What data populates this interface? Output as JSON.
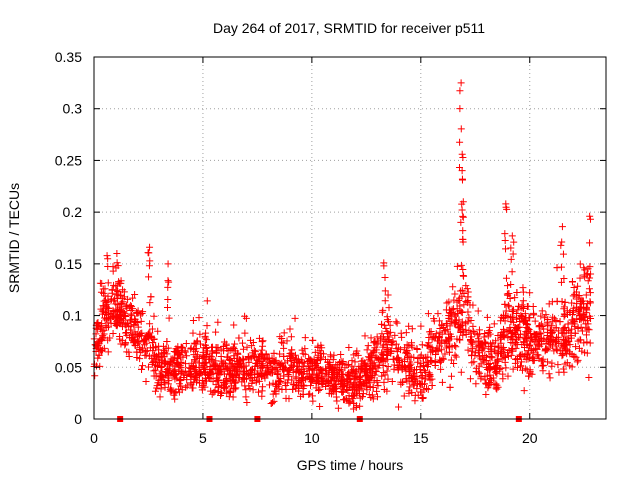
{
  "chart_data": {
    "type": "scatter",
    "title": "Day 264 of 2017, SRMTID for receiver p511",
    "xlabel": "GPS time / hours",
    "ylabel": "SRMTID / TECUs",
    "xlim": [
      0,
      23.5
    ],
    "ylim": [
      0,
      0.35
    ],
    "xticks": [
      0,
      5,
      10,
      15,
      20
    ],
    "xtick_labels": [
      "0",
      "5",
      "10",
      "15",
      "20"
    ],
    "yticks": [
      0,
      0.05,
      0.1,
      0.15,
      0.2,
      0.25,
      0.3,
      0.35
    ],
    "ytick_labels": [
      "0",
      "0.05",
      "0.1",
      "0.15",
      "0.2",
      "0.25",
      "0.3",
      "0.35"
    ],
    "grid": true,
    "marker": "plus",
    "color": "#ff0000",
    "series_profile": {
      "name": "SRMTID",
      "x": [
        0,
        0.5,
        1.0,
        1.5,
        2.0,
        2.5,
        3.0,
        3.5,
        4.0,
        4.5,
        5.0,
        5.5,
        6.0,
        6.5,
        7.0,
        7.5,
        8.0,
        8.5,
        9.0,
        9.5,
        10.0,
        10.5,
        11.0,
        11.5,
        12.0,
        12.5,
        13.0,
        13.5,
        14.0,
        14.5,
        15.0,
        15.5,
        16.0,
        16.5,
        17.0,
        17.5,
        18.0,
        18.5,
        19.0,
        19.5,
        20.0,
        20.5,
        21.0,
        21.5,
        22.0,
        22.5,
        22.8
      ],
      "y_center": [
        0.065,
        0.1,
        0.11,
        0.095,
        0.08,
        0.07,
        0.05,
        0.048,
        0.05,
        0.05,
        0.055,
        0.05,
        0.045,
        0.05,
        0.048,
        0.05,
        0.045,
        0.045,
        0.05,
        0.045,
        0.045,
        0.045,
        0.04,
        0.035,
        0.035,
        0.04,
        0.06,
        0.075,
        0.06,
        0.05,
        0.045,
        0.06,
        0.075,
        0.09,
        0.1,
        0.07,
        0.065,
        0.05,
        0.09,
        0.08,
        0.075,
        0.08,
        0.08,
        0.075,
        0.09,
        0.1,
        0.1
      ],
      "y_spread": [
        0.012,
        0.018,
        0.018,
        0.015,
        0.014,
        0.014,
        0.015,
        0.013,
        0.013,
        0.013,
        0.014,
        0.013,
        0.013,
        0.013,
        0.013,
        0.013,
        0.013,
        0.013,
        0.013,
        0.013,
        0.013,
        0.013,
        0.012,
        0.011,
        0.011,
        0.012,
        0.016,
        0.018,
        0.016,
        0.014,
        0.014,
        0.016,
        0.018,
        0.022,
        0.025,
        0.018,
        0.016,
        0.016,
        0.022,
        0.02,
        0.018,
        0.018,
        0.018,
        0.018,
        0.02,
        0.025,
        0.025
      ],
      "peaks": [
        {
          "x": 0.6,
          "y": 0.158
        },
        {
          "x": 1.05,
          "y": 0.16
        },
        {
          "x": 2.55,
          "y": 0.166
        },
        {
          "x": 3.4,
          "y": 0.15
        },
        {
          "x": 13.3,
          "y": 0.151
        },
        {
          "x": 16.85,
          "y": 0.325
        },
        {
          "x": 16.9,
          "y": 0.256
        },
        {
          "x": 16.95,
          "y": 0.21
        },
        {
          "x": 18.9,
          "y": 0.208
        },
        {
          "x": 19.2,
          "y": 0.177
        },
        {
          "x": 21.5,
          "y": 0.186
        },
        {
          "x": 22.75,
          "y": 0.196
        }
      ]
    },
    "gap_markers_x": [
      1.2,
      5.3,
      7.5,
      12.2,
      19.5
    ]
  }
}
